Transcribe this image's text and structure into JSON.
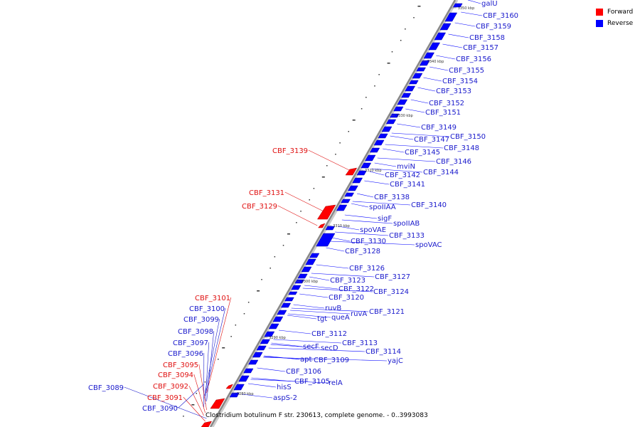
{
  "legend": {
    "forward_label": "Forward",
    "reverse_label": "Reverse",
    "forward_color": "#ff0000",
    "reverse_color": "#0000ff"
  },
  "caption": "Clostridium botulinum F str. 230613, complete genome. - 0..3993083",
  "backbone_color": "#888888",
  "ticks": [
    "3350 kbp",
    "3340 kbp",
    "3330 kbp",
    "3320 kbp",
    "3310 kbp",
    "3300 kbp",
    "3290 kbp",
    "3280 kbp"
  ],
  "labels_right": [
    "galU",
    "CBF_3160",
    "CBF_3159",
    "CBF_3158",
    "CBF_3157",
    "CBF_3156",
    "CBF_3155",
    "CBF_3154",
    "CBF_3153",
    "CBF_3152",
    "CBF_3151",
    "CBF_3149",
    "CBF_3150",
    "CBF_3147",
    "CBF_3148",
    "CBF_3145",
    "CBF_3146",
    "mviN",
    "CBF_3144",
    "CBF_3142",
    "CBF_3141",
    "CBF_3138",
    "CBF_3140",
    "spoIIAA",
    "sigF",
    "spoIIAB",
    "spoVAE",
    "CBF_3133",
    "spoVAC",
    "CBF_3130",
    "CBF_3128",
    "CBF_3126",
    "CBF_3127",
    "CBF_3123",
    "CBF_3122",
    "CBF_3124",
    "CBF_3120",
    "ruvB",
    "ruvA",
    "CBF_3121",
    "tgt",
    "queA",
    "CBF_3112",
    "CBF_3113",
    "secF",
    "secD",
    "CBF_3114",
    "apt",
    "CBF_3109",
    "yajC",
    "CBF_3106",
    "CBF_3105",
    "relA",
    "hisS",
    "aspS-2"
  ],
  "labels_left": [
    "CBF_3139",
    "CBF_3131",
    "CBF_3129",
    "CBF_3101",
    "CBF_3100",
    "CBF_3099",
    "CBF_3098",
    "CBF_3097",
    "CBF_3096",
    "CBF_3095",
    "CBF_3094",
    "CBF_3092",
    "CBF_3089",
    "CBF_3091",
    "CBF_3090"
  ],
  "label_strands": {
    "CBF_3139": "forward",
    "CBF_3131": "forward",
    "CBF_3129": "forward",
    "CBF_3101": "forward",
    "CBF_3100": "reverse",
    "CBF_3099": "reverse",
    "CBF_3098": "reverse",
    "CBF_3097": "reverse",
    "CBF_3096": "reverse",
    "CBF_3095": "forward",
    "CBF_3094": "forward",
    "CBF_3092": "forward",
    "CBF_3089": "reverse",
    "CBF_3091": "forward",
    "CBF_3090": "reverse"
  }
}
